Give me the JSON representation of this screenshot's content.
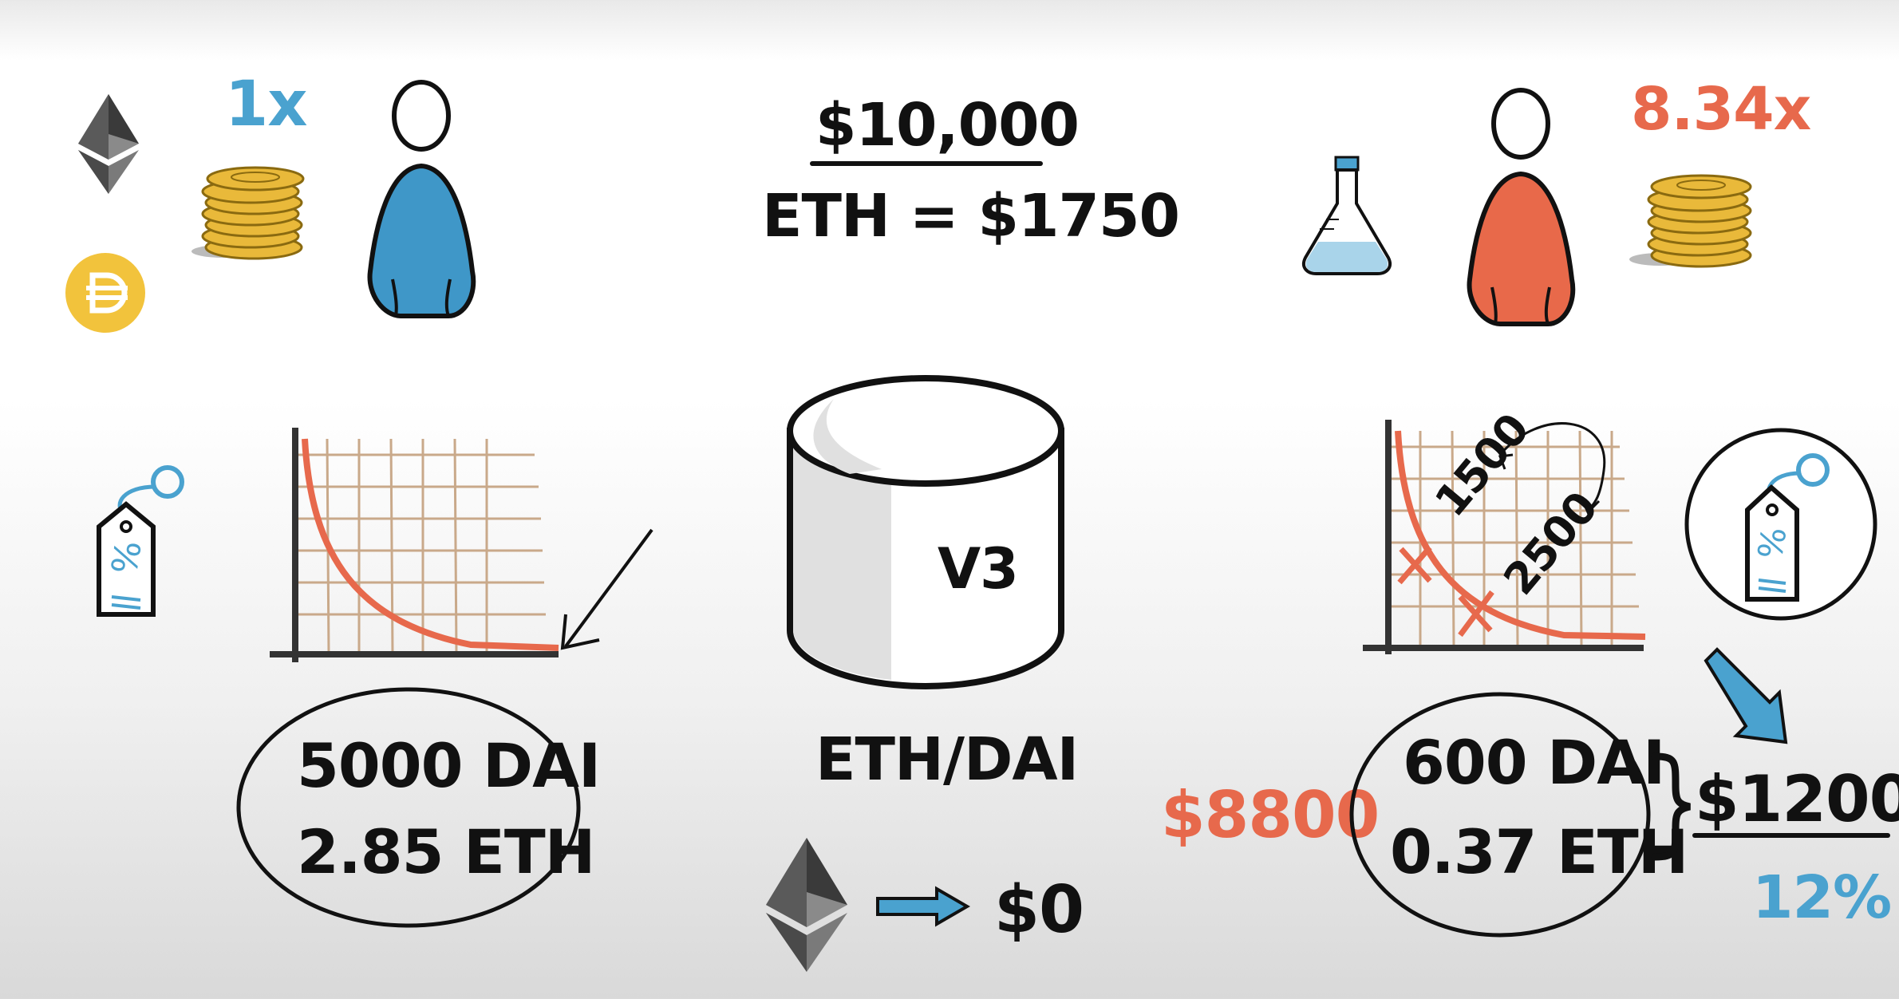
{
  "left": {
    "multiplier": "1x",
    "balance_dai": "5000 DAI",
    "balance_eth": "2.85 ETH",
    "icons": [
      "eth-icon",
      "coin-stack-icon",
      "dai-coin-icon",
      "person-icon",
      "price-tag-icon",
      "curve-chart-icon",
      "arrow-icon"
    ]
  },
  "center": {
    "amount": "$10,000",
    "eth_price": "ETH = $1750",
    "pool_version": "V3",
    "pair": "ETH/DAI",
    "result": "$0",
    "icons": [
      "database-icon",
      "eth-icon",
      "arrow-right-icon"
    ]
  },
  "right": {
    "multiplier": "8.34x",
    "range_low": "1500",
    "range_high": "2500",
    "balance_dai": "600 DAI",
    "balance_eth": "0.37 ETH",
    "lost_value": "$8800",
    "remaining_value": "$1200",
    "percent": "12%",
    "icons": [
      "flask-icon",
      "person-icon",
      "coin-stack-icon",
      "price-tag-icon",
      "curve-chart-icon",
      "arrow-down-icon"
    ]
  },
  "colors": {
    "blue": "#4aa2cf",
    "orange": "#e7694c",
    "gold": "#e9b93a",
    "grid": "#c9a98a",
    "ink": "#111111"
  }
}
